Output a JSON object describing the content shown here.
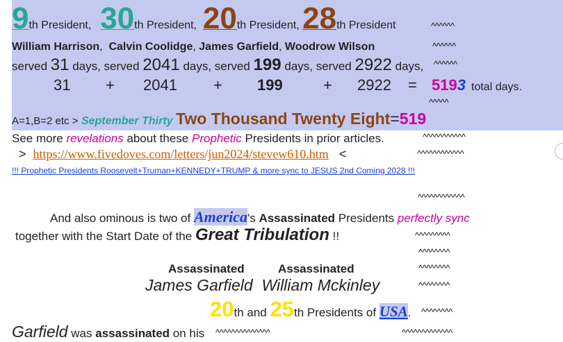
{
  "presidents_row": {
    "n1": "9",
    "s1": "th President,",
    "n2": "30",
    "s2": "th President,",
    "n3": "20",
    "s3": "th President,",
    "n4": "28",
    "s4": "th President",
    "carets": "^^^^^^"
  },
  "names_row": {
    "name1": "William Harrison",
    "sep1": ",",
    "name2": "Calvin Coolidge",
    "sep2": ",",
    "name3": "James Garfield",
    "sep3": ",",
    "name4": "Woodrow Wilson",
    "carets": "^^^^^^"
  },
  "served_row": {
    "label1": "served",
    "d1": "31",
    "label2": "days, served",
    "d2": "2041",
    "label3": "days, served",
    "d3": "199",
    "label4": "days, served",
    "d4": "2922",
    "label5": "days,",
    "carets": "^^^^^^"
  },
  "sum_row": {
    "a": "31",
    "plus1": "+",
    "b": "2041",
    "plus2": "+",
    "c": "199",
    "plus3": "+",
    "d": "2922",
    "eq": "=",
    "total_main": "519",
    "total_last": "3",
    "total_label": "total days.",
    "carets": "^^^^^"
  },
  "cipher_row": {
    "prefix": "A=1,B=2 etc >",
    "date": "September Thirty",
    "year": "Two Thousand Twenty Eight",
    "eq": "=",
    "value": "519"
  },
  "see_more": {
    "pre": "See more",
    "revelations": "revelations",
    "mid": "about these",
    "prophetic": "Prophetic",
    "post": "Presidents in prior articles.",
    "carets": "^^^^^^^^^^^"
  },
  "link_row": {
    "gt": ">",
    "url": "https://www.fivedoves.com/letters/jun2024/stevew610.htm",
    "lt": "<",
    "carets": "^^^^^^^^^^^^"
  },
  "small_link": "!!! Prophetic Presidents Roosevelt+Truman+KENNEDY+TRUMP & more sync to JESUS 2nd Coming 2028 !!!",
  "spacer_carets": "^^^^^^^^^^^^",
  "ominous": {
    "pre": "And also ominous is two of",
    "america": "America",
    "mid": "'s",
    "assassinated": "Assassinated",
    "post": "Presidents",
    "sync": "perfectly sync"
  },
  "tribulation": {
    "pre": "together with the Start Date of the",
    "great": "Great Tribulation",
    "post": "!!",
    "carets": "^^^^^^^^^"
  },
  "assassinated_row": {
    "a1": "Assassinated",
    "a2": "Assassinated",
    "carets": "^^^^^^^^"
  },
  "names2_row": {
    "n1": "James Garfield",
    "n2": "William Mckinley",
    "carets": "^^^^^^^^"
  },
  "ordinals_row": {
    "n1": "20",
    "s1": "th and",
    "n2": "25",
    "s2": "th Presidents of",
    "usa": "USA",
    "dot": ".",
    "carets": "^^^^^^^^"
  },
  "last_row": {
    "garfield": "Garfield",
    "was": "was",
    "assassinated": "assassinated",
    "on": "on his",
    "carets1": "^^^^^^^^^^^^^^",
    "carets2": "^^^^^^^^^^^^^"
  },
  "colors": {
    "highlight": "#c4c9f0",
    "teal": "#2aa596",
    "brown": "#8b4513",
    "magenta": "#cc0099",
    "link_orange": "#d05a00",
    "link_blue": "#1b3fd1",
    "yellow": "#ffe000"
  }
}
